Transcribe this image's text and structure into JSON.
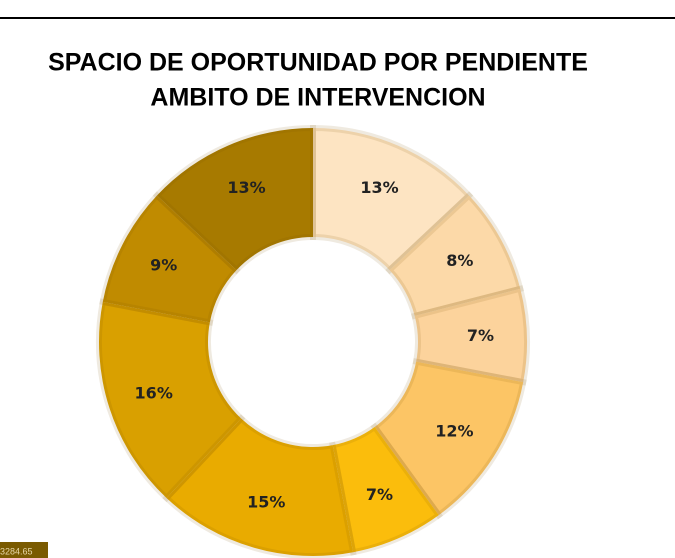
{
  "chart_data": {
    "type": "donut",
    "title": [
      "SPACIO DE OPORTUNIDAD POR PENDIENTE",
      "AMBITO DE INTERVENCION"
    ],
    "values": [
      13,
      8,
      7,
      12,
      7,
      15,
      16,
      9,
      13
    ],
    "value_labels": [
      "13%",
      "8%",
      "7%",
      "12%",
      "7%",
      "15%",
      "16%",
      "9%",
      "13%"
    ],
    "colors": [
      "#fde4c2",
      "#fcd9a8",
      "#fcd39c",
      "#fcc565",
      "#fbbd0c",
      "#e9ab00",
      "#d9a000",
      "#c08b00",
      "#a77a00"
    ],
    "annotation": "3284.65"
  }
}
